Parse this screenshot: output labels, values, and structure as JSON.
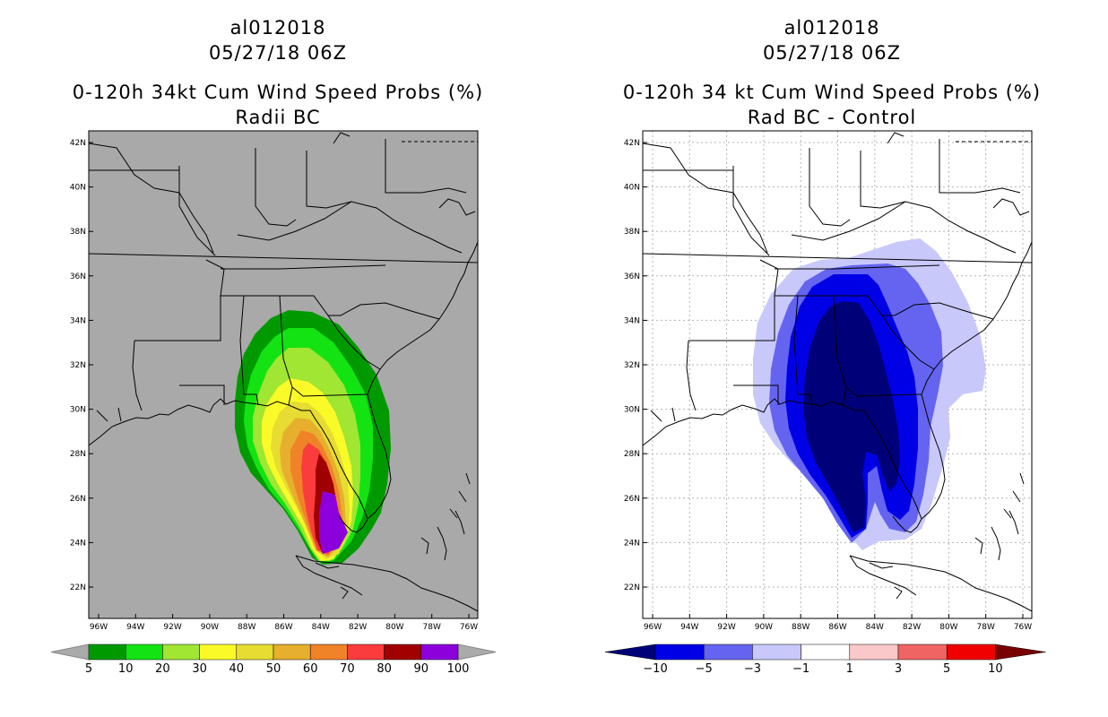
{
  "panels": [
    {
      "id": "left",
      "storm": "al012018",
      "datetime": "05/27/18 06Z",
      "title": "0-120h 34kt Cum Wind Speed Probs (%)",
      "subtitle": "Radii BC",
      "background": "#a9a9a9",
      "grid": false,
      "lat_ticks": [
        "42N",
        "40N",
        "38N",
        "36N",
        "34N",
        "32N",
        "30N",
        "28N",
        "26N",
        "24N",
        "22N"
      ],
      "lon_ticks": [
        "96W",
        "94W",
        "92W",
        "90W",
        "88W",
        "86W",
        "84W",
        "82W",
        "80W",
        "78W",
        "76W"
      ],
      "colorbar": {
        "labels": [
          "5",
          "10",
          "20",
          "30",
          "40",
          "50",
          "60",
          "70",
          "80",
          "90",
          "100"
        ],
        "colors": [
          "#009a00",
          "#13e313",
          "#a0e632",
          "#fafa28",
          "#e6dc32",
          "#e6af2d",
          "#f08228",
          "#fa3c3c",
          "#a00000",
          "#8c00dc"
        ],
        "end_color": "#aaaaaa"
      }
    },
    {
      "id": "right",
      "storm": "al012018",
      "datetime": "05/27/18 06Z",
      "title": "0-120h 34 kt Cum Wind Speed Probs (%)",
      "subtitle": "Rad BC - Control",
      "background": "#ffffff",
      "grid": true,
      "lat_ticks": [
        "42N",
        "40N",
        "38N",
        "36N",
        "34N",
        "32N",
        "30N",
        "28N",
        "26N",
        "24N",
        "22N"
      ],
      "lon_ticks": [
        "96W",
        "94W",
        "92W",
        "90W",
        "88W",
        "86W",
        "84W",
        "82W",
        "80W",
        "78W",
        "76W"
      ],
      "colorbar": {
        "labels": [
          "-10",
          "-5",
          "-3",
          "-1",
          "1",
          "3",
          "5",
          "10"
        ],
        "colors": [
          "#0000e6",
          "#6464f0",
          "#c8c8fa",
          "#ffffff",
          "#fac8c8",
          "#f06464",
          "#f00000"
        ],
        "end_left_color": "#000078",
        "end_right_color": "#780000"
      }
    }
  ]
}
